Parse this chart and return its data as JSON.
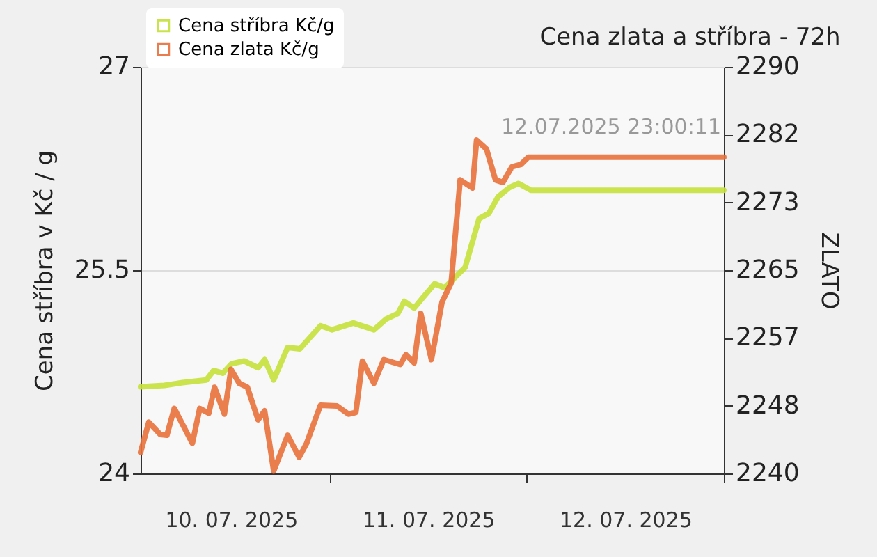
{
  "chart_data": {
    "type": "line",
    "title": "Cena zlata a stříbra - 72h",
    "ylabel": "Cena stříbra v Kč / g",
    "y2label": "ZLATO",
    "annotations": [
      "12.07.2025 23:00:11"
    ],
    "xlim": [
      "2025-07-10T01:00",
      "2025-07-13T00:00"
    ],
    "xticks": [
      {
        "value": "2025-07-10T12:00",
        "label": "10. 07. 2025"
      },
      {
        "value": "2025-07-11T12:00",
        "label": "11. 07. 2025"
      },
      {
        "value": "2025-07-12T12:00",
        "label": "12. 07. 2025"
      },
      {
        "value": "2025-07-11T00:00",
        "label": null
      },
      {
        "value": "2025-07-12T00:00",
        "label": null
      },
      {
        "value": "2025-07-13T00:00",
        "label": null
      }
    ],
    "ylim": [
      24,
      27
    ],
    "yticks": [
      24,
      25.5,
      27
    ],
    "y2lim": [
      2240,
      2290
    ],
    "y2ticks": [
      2240,
      {
        "value": 2248.333,
        "label": "2248"
      },
      {
        "value": 2256.667,
        "label": "2257"
      },
      2265,
      {
        "value": 2273.333,
        "label": "2273"
      },
      {
        "value": 2281.667,
        "label": "2282"
      },
      2290
    ],
    "grid": "y",
    "legend": "top left",
    "line_style": "solid",
    "marker": "none",
    "series": [
      {
        "name": "Cena stříbra Kč/g",
        "color": "#c5e03a",
        "x": [
          "2025-07-10T01:00",
          "2025-07-10T03:54",
          "2025-07-10T06:06",
          "2025-07-10T09:00",
          "2025-07-10T09:54",
          "2025-07-10T11:00",
          "2025-07-10T12:06",
          "2025-07-10T13:36",
          "2025-07-10T15:18",
          "2025-07-10T16:06",
          "2025-07-10T17:12",
          "2025-07-10T18:54",
          "2025-07-10T20:24",
          "2025-07-10T22:54",
          "2025-07-11T00:18",
          "2025-07-11T02:54",
          "2025-07-11T05:24",
          "2025-07-11T06:54",
          "2025-07-11T08:18",
          "2025-07-11T09:06",
          "2025-07-11T10:18",
          "2025-07-11T11:24",
          "2025-07-11T12:48",
          "2025-07-11T14:00",
          "2025-07-11T16:30",
          "2025-07-11T18:12",
          "2025-07-11T19:24",
          "2025-07-11T20:30",
          "2025-07-11T21:54",
          "2025-07-11T23:00",
          "2025-07-12T00:30",
          "2025-07-13T00:00"
        ],
        "values": [
          24.64,
          24.65,
          24.67,
          24.69,
          24.76,
          24.74,
          24.81,
          24.83,
          24.78,
          24.84,
          24.69,
          24.93,
          24.92,
          25.09,
          25.06,
          25.11,
          25.06,
          25.14,
          25.18,
          25.27,
          25.22,
          25.3,
          25.4,
          25.37,
          25.52,
          25.88,
          25.92,
          26.04,
          26.11,
          26.14,
          26.09,
          26.09
        ]
      },
      {
        "name": "Cena zlata Kč/g",
        "color": "#e8703a",
        "axis": "y2",
        "x": [
          "2025-07-10T01:00",
          "2025-07-10T02:00",
          "2025-07-10T03:24",
          "2025-07-10T04:12",
          "2025-07-10T05:06",
          "2025-07-10T07:18",
          "2025-07-10T08:12",
          "2025-07-10T09:18",
          "2025-07-10T10:00",
          "2025-07-10T11:12",
          "2025-07-10T12:00",
          "2025-07-10T13:00",
          "2025-07-10T14:00",
          "2025-07-10T15:18",
          "2025-07-10T16:06",
          "2025-07-10T17:12",
          "2025-07-10T18:54",
          "2025-07-10T20:18",
          "2025-07-10T21:12",
          "2025-07-10T22:54",
          "2025-07-11T00:54",
          "2025-07-11T02:18",
          "2025-07-11T03:12",
          "2025-07-11T04:00",
          "2025-07-11T05:24",
          "2025-07-11T06:36",
          "2025-07-11T08:36",
          "2025-07-11T09:18",
          "2025-07-11T10:18",
          "2025-07-11T11:06",
          "2025-07-11T12:24",
          "2025-07-11T13:42",
          "2025-07-11T14:48",
          "2025-07-11T15:54",
          "2025-07-11T17:24",
          "2025-07-11T17:54",
          "2025-07-11T19:06",
          "2025-07-11T20:12",
          "2025-07-11T21:06",
          "2025-07-11T22:12",
          "2025-07-11T23:18",
          "2025-07-12T00:12",
          "2025-07-13T00:00"
        ],
        "values": [
          2242.6,
          2246.3,
          2244.8,
          2244.7,
          2248.0,
          2243.7,
          2248.0,
          2247.4,
          2250.6,
          2247.3,
          2252.8,
          2251.1,
          2250.6,
          2246.6,
          2247.7,
          2240.3,
          2244.7,
          2242.0,
          2243.7,
          2248.4,
          2248.3,
          2247.3,
          2247.5,
          2253.8,
          2251.1,
          2254.0,
          2253.4,
          2254.6,
          2253.6,
          2259.7,
          2254.0,
          2261.1,
          2263.4,
          2276.1,
          2275.1,
          2281.0,
          2279.9,
          2276.1,
          2275.8,
          2277.7,
          2278.0,
          2278.9,
          2278.9
        ]
      }
    ]
  }
}
